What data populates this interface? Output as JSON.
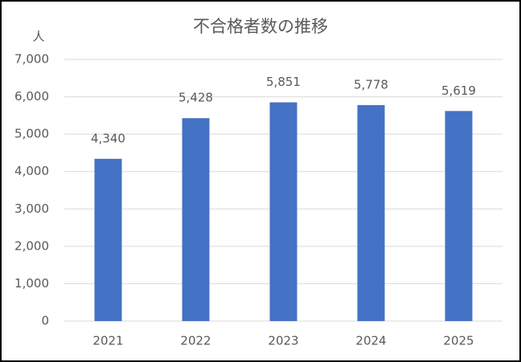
{
  "chart_data": {
    "type": "bar",
    "title": "不合格者数の推移",
    "ylabel": "人",
    "categories": [
      "2021",
      "2022",
      "2023",
      "2024",
      "2025"
    ],
    "values": [
      4340,
      5428,
      5851,
      5778,
      5619
    ],
    "value_labels": [
      "4,340",
      "5,428",
      "5,851",
      "5,778",
      "5,619"
    ],
    "color": "#4472c4",
    "ylim": [
      0,
      7000
    ],
    "yticks": [
      0,
      {
        "value": 1000,
        "label": "1,000"
      },
      {
        "value": 2000,
        "label": "2,000"
      },
      {
        "value": 3000,
        "label": "3,000"
      },
      {
        "value": 4000,
        "label": "4,000"
      },
      {
        "value": 5000,
        "label": "5,000"
      },
      {
        "value": 6000,
        "label": "6,000"
      },
      {
        "value": 7000,
        "label": "7,000"
      }
    ],
    "grid": true
  }
}
